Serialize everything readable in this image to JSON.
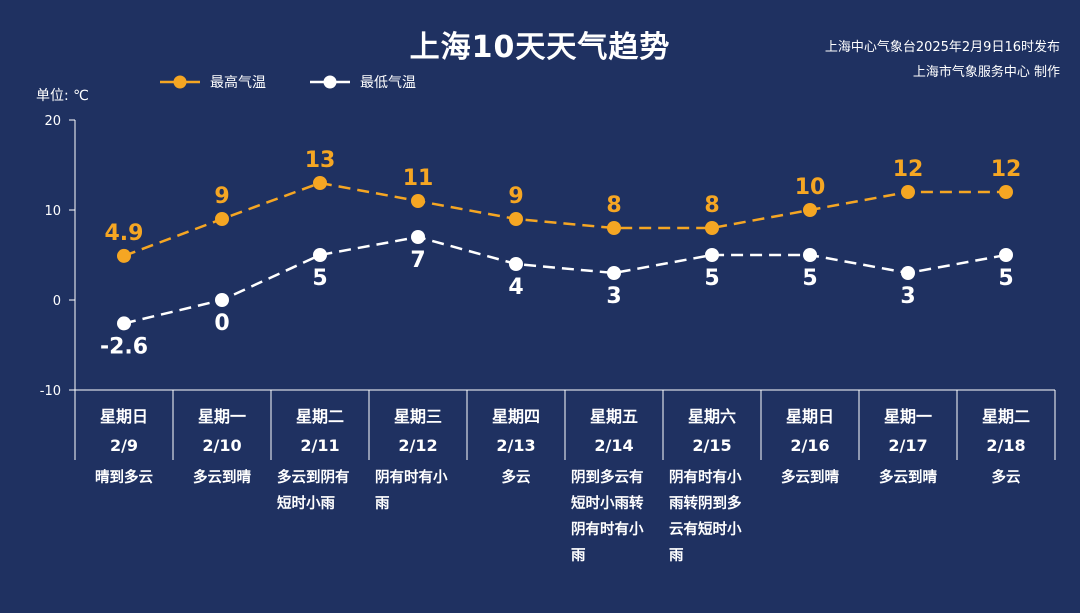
{
  "title": "上海10天天气趋势",
  "issuer_line1": "上海中心气象台2025年2月9日16时发布",
  "issuer_line2": "上海市气象服务中心 制作",
  "unit_label": "单位: ℃",
  "colors": {
    "background": "#1f3161",
    "max_line": "#f5a623",
    "min_line": "#ffffff"
  },
  "chart_data": {
    "type": "line",
    "title": "上海10天天气趋势",
    "ylabel": "单位: ℃",
    "ylim": [
      -10,
      20
    ],
    "yticks": [
      -10,
      0,
      10,
      20
    ],
    "legend_position": "top-left",
    "categories": [
      {
        "weekday": "星期日",
        "date": "2/9",
        "weather": "晴到多云"
      },
      {
        "weekday": "星期一",
        "date": "2/10",
        "weather": "多云到晴"
      },
      {
        "weekday": "星期二",
        "date": "2/11",
        "weather": "多云到阴有短时小雨"
      },
      {
        "weekday": "星期三",
        "date": "2/12",
        "weather": "阴有时有小雨"
      },
      {
        "weekday": "星期四",
        "date": "2/13",
        "weather": "多云"
      },
      {
        "weekday": "星期五",
        "date": "2/14",
        "weather": "阴到多云有短时小雨转阴有时有小雨"
      },
      {
        "weekday": "星期六",
        "date": "2/15",
        "weather": "阴有时有小雨转阴到多云有短时小雨"
      },
      {
        "weekday": "星期日",
        "date": "2/16",
        "weather": "多云到晴"
      },
      {
        "weekday": "星期一",
        "date": "2/17",
        "weather": "多云到晴"
      },
      {
        "weekday": "星期二",
        "date": "2/18",
        "weather": "多云"
      }
    ],
    "series": [
      {
        "name": "最高气温",
        "values": [
          4.9,
          9,
          13,
          11,
          9,
          8,
          8,
          10,
          12,
          12
        ],
        "labels": [
          "4.9",
          "9",
          "13",
          "11",
          "9",
          "8",
          "8",
          "10",
          "12",
          "12"
        ]
      },
      {
        "name": "最低气温",
        "values": [
          -2.6,
          0,
          5,
          7,
          4,
          3,
          5,
          5,
          3,
          5
        ],
        "labels": [
          "-2.6",
          "0",
          "5",
          "7",
          "4",
          "3",
          "5",
          "5",
          "3",
          "5"
        ]
      }
    ]
  }
}
